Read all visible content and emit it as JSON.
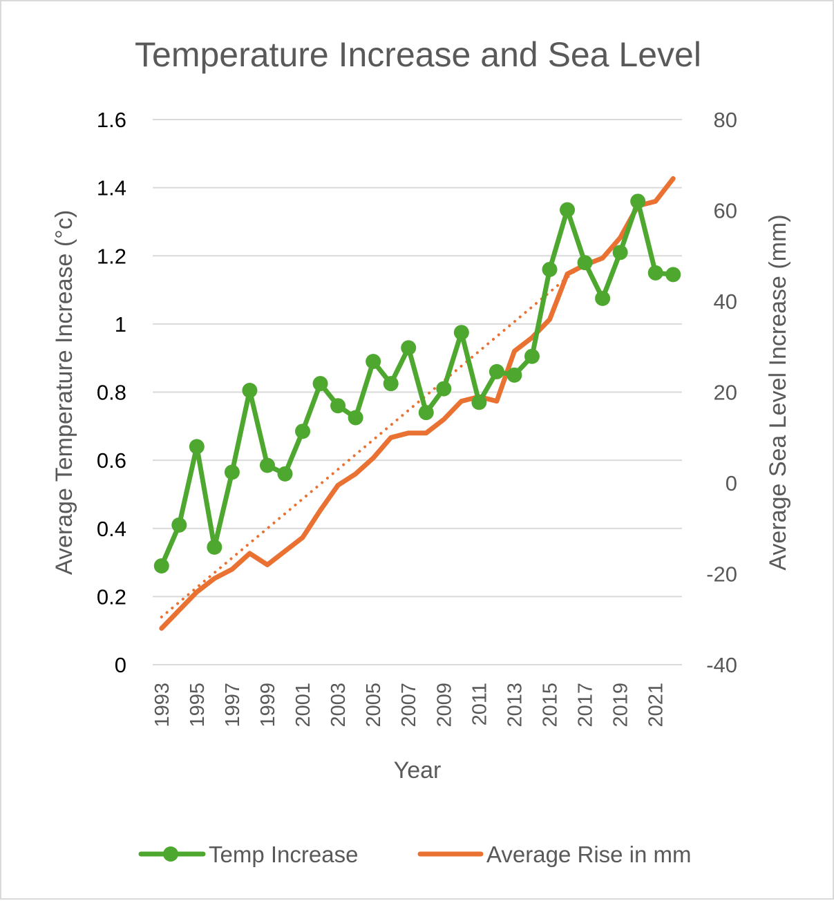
{
  "chart_data": {
    "type": "line",
    "title": "Temperature Increase and Sea Level",
    "xlabel": "Year",
    "ylabel_left": "Average Temperature Increase (°c)",
    "ylabel_right": "Average Sea Level Increase (mm)",
    "ylim_left": [
      0,
      1.6
    ],
    "ylim_right": [
      -40,
      80
    ],
    "yticks_left": [
      "0",
      "0.2",
      "0.4",
      "0.6",
      "0.8",
      "1",
      "1.2",
      "1.4",
      "1.6"
    ],
    "yticks_right": [
      "-40",
      "-20",
      "0",
      "20",
      "40",
      "60",
      "80"
    ],
    "x": [
      1993,
      1994,
      1995,
      1996,
      1997,
      1998,
      1999,
      2000,
      2001,
      2002,
      2003,
      2004,
      2005,
      2006,
      2007,
      2008,
      2009,
      2010,
      2011,
      2012,
      2013,
      2014,
      2015,
      2016,
      2017,
      2018,
      2019,
      2020,
      2021,
      2022
    ],
    "xtick_labels": [
      "1993",
      "1995",
      "1997",
      "1999",
      "2001",
      "2003",
      "2005",
      "2007",
      "2009",
      "2011",
      "2013",
      "2015",
      "2017",
      "2019",
      "2021"
    ],
    "grid": true,
    "legend_position": "bottom",
    "series": [
      {
        "name": "Temp Increase",
        "axis": "left",
        "color": "#4ea72e",
        "marker": "circle",
        "values": [
          0.29,
          0.41,
          0.64,
          0.345,
          0.565,
          0.805,
          0.585,
          0.56,
          0.685,
          0.825,
          0.76,
          0.725,
          0.89,
          0.825,
          0.93,
          0.74,
          0.81,
          0.975,
          0.77,
          0.86,
          0.85,
          0.905,
          1.16,
          1.335,
          1.18,
          1.075,
          1.21,
          1.36,
          1.15,
          1.145
        ]
      },
      {
        "name": "Average Rise in mm",
        "axis": "right",
        "color": "#e97132",
        "marker": "none",
        "values": [
          -32,
          -28,
          -24,
          -21,
          -19,
          -15.5,
          -18,
          -15,
          -12,
          -6,
          -0.5,
          2,
          5.5,
          10,
          11,
          11,
          14,
          18,
          19,
          18,
          29,
          32,
          36,
          46,
          48,
          49.5,
          54,
          61,
          62,
          67
        ]
      }
    ],
    "trendline": {
      "series": "Average Rise in mm",
      "type": "linear",
      "style": "dotted",
      "color": "#e97132",
      "from_x": 1993,
      "to_x": 2017,
      "y_start": -29.5,
      "y_end": 48.5
    }
  }
}
